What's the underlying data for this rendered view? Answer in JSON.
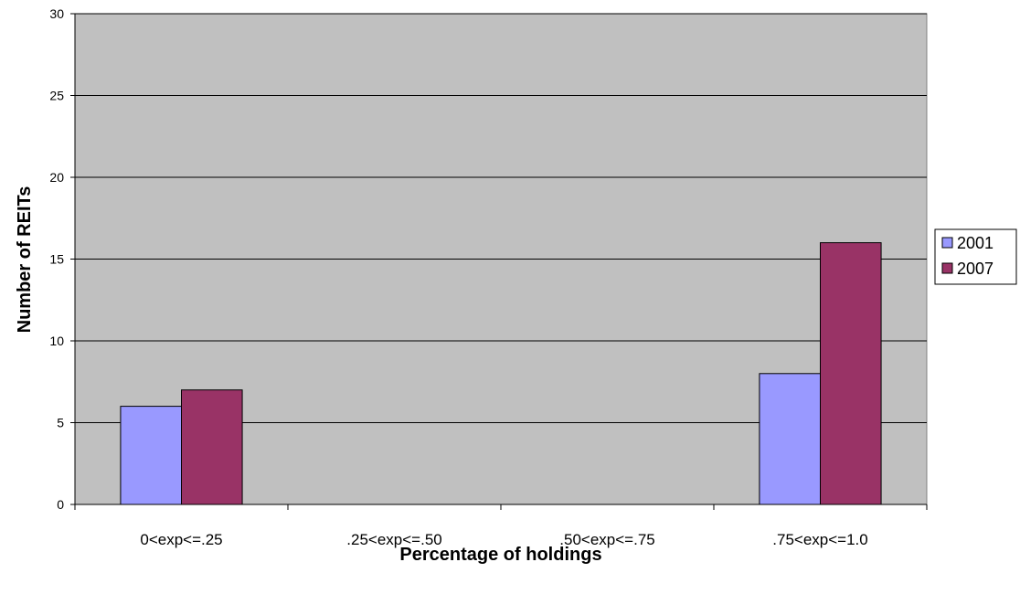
{
  "chart_data": {
    "type": "bar",
    "title": "",
    "xlabel": "Percentage of holdings",
    "ylabel": "Number of REITs",
    "categories": [
      "0<exp<=.25",
      ".25<exp<=.50",
      ".50<exp<=.75",
      ".75<exp<=1.0"
    ],
    "series": [
      {
        "name": "2001",
        "values": [
          6,
          0,
          0,
          8
        ]
      },
      {
        "name": "2007",
        "values": [
          7,
          0,
          0,
          16
        ]
      }
    ],
    "ylim": [
      0,
      30
    ],
    "yticks": [
      0,
      5,
      10,
      15,
      20,
      25,
      30
    ],
    "grid": true,
    "legend_position": "right",
    "colors": {
      "plot_background": "#c0c0c0",
      "series": [
        "#9999ff",
        "#993366"
      ],
      "gridline": "#000000"
    }
  }
}
